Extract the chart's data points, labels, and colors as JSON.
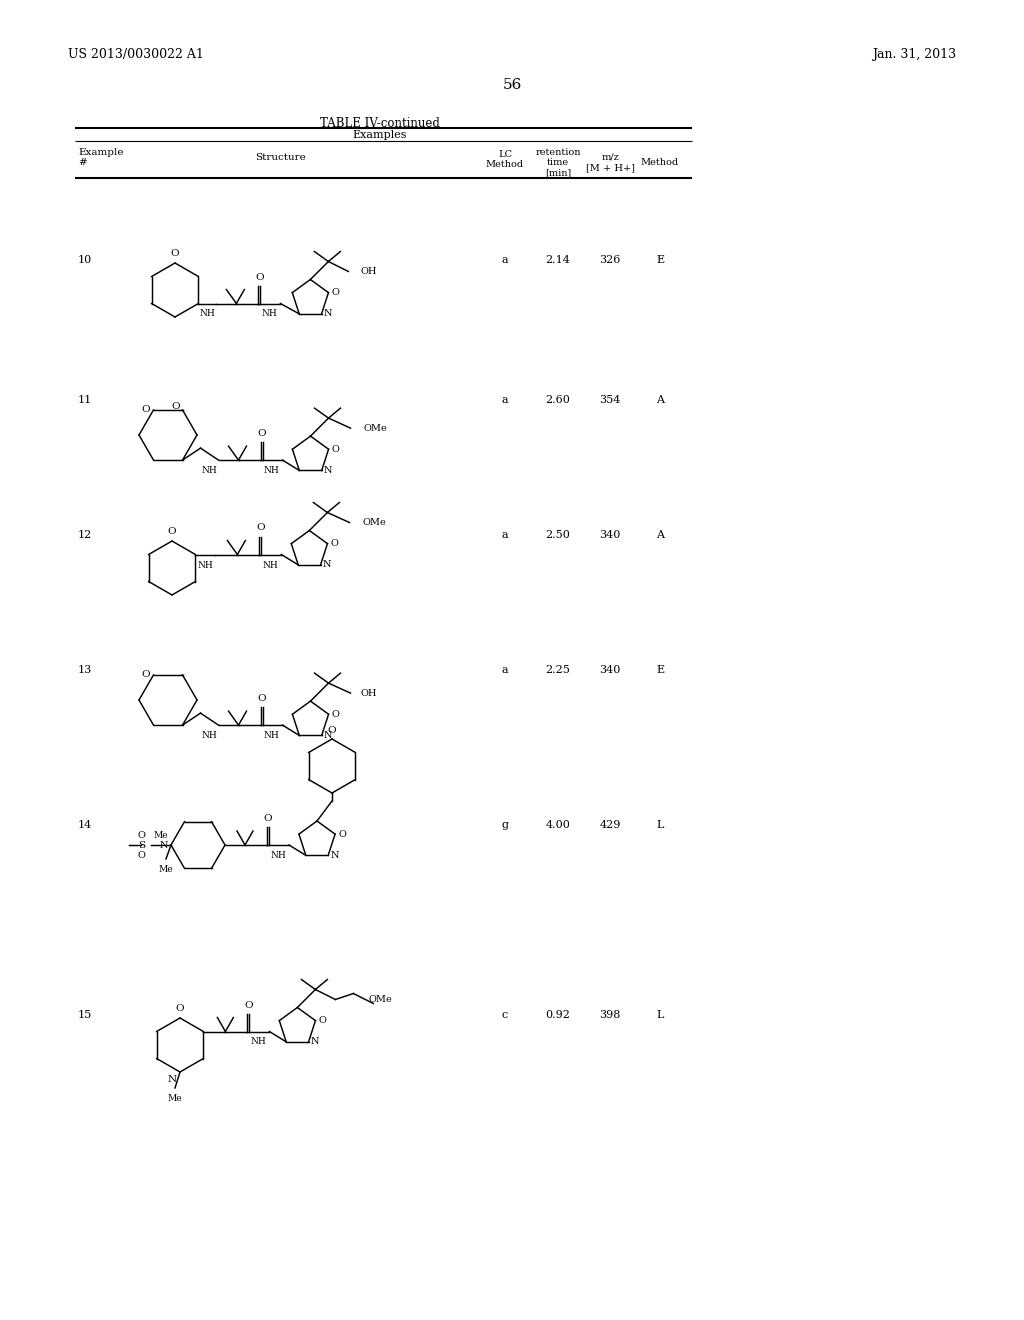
{
  "page_header_left": "US 2013/0030022 A1",
  "page_header_right": "Jan. 31, 2013",
  "page_number": "56",
  "table_title": "TABLE IV-continued",
  "section_label": "Examples",
  "bg_color": "#ffffff",
  "rows": [
    {
      "num": "10",
      "lc": "a",
      "rt": "2.14",
      "mz": "326",
      "method": "E"
    },
    {
      "num": "11",
      "lc": "a",
      "rt": "2.60",
      "mz": "354",
      "method": "A"
    },
    {
      "num": "12",
      "lc": "a",
      "rt": "2.50",
      "mz": "340",
      "method": "A"
    },
    {
      "num": "13",
      "lc": "a",
      "rt": "2.25",
      "mz": "340",
      "method": "E"
    },
    {
      "num": "14",
      "lc": "g",
      "rt": "4.00",
      "mz": "429",
      "method": "L"
    },
    {
      "num": "15",
      "lc": "c",
      "rt": "0.92",
      "mz": "398",
      "method": "L"
    }
  ],
  "row_centers_y": [
    255,
    395,
    530,
    665,
    820,
    1010
  ],
  "col_x": {
    "num": 78,
    "lc": 505,
    "rt": 558,
    "mz": 610,
    "method": 660
  }
}
